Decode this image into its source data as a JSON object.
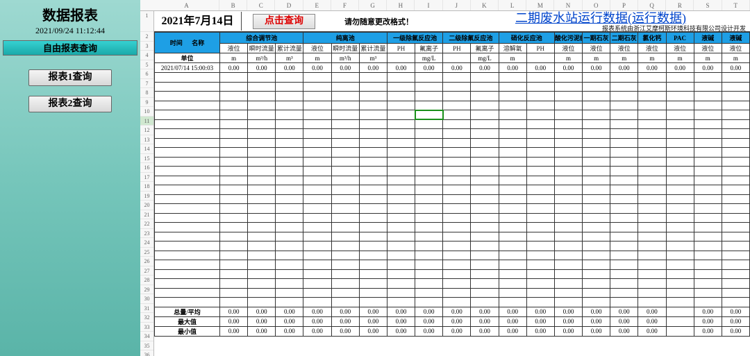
{
  "sidebar": {
    "title": "数据报表",
    "timestamp": "2021/09/24 11:12:44",
    "tab": "自由报表查询",
    "btn1": "报表1查询",
    "btn2": "报表2查询"
  },
  "header": {
    "date": "2021年7月14日",
    "query_btn": "点击查询",
    "warning": "请勿随意更改格式！",
    "title": "二期废水站运行数据(运行数据)",
    "credit": "报表系统由浙江艾摩柯斯环境科技有限公司设计开发"
  },
  "col_letters": [
    "A",
    "B",
    "C",
    "D",
    "E",
    "F",
    "G",
    "H",
    "I",
    "J",
    "K",
    "L",
    "M",
    "N",
    "O",
    "P",
    "Q",
    "R",
    "S",
    "T"
  ],
  "row_nums": [
    "1",
    "2",
    "3",
    "4",
    "5",
    "6",
    "7",
    "8",
    "9",
    "10",
    "11",
    "12",
    "13",
    "14",
    "15",
    "16",
    "17",
    "18",
    "19",
    "20",
    "21",
    "22",
    "23",
    "24",
    "25",
    "26",
    "27",
    "28",
    "29",
    "30",
    "31",
    "32",
    "33",
    "34",
    "35",
    "36"
  ],
  "groups": {
    "time": "时间",
    "name": "名称",
    "g1": "综合调节池",
    "g2": "纯离池",
    "g3": "一级除氟反应池",
    "g4": "二级除氟反应池",
    "g5": "硝化反应池",
    "g6": "酸化污泥缓存",
    "g7": "一期石灰",
    "g8": "二期石灰",
    "g9": "氯化钙",
    "g10": "PAC",
    "g11": "液碱",
    "g12": "液碱"
  },
  "sub": [
    "液位",
    "瞬时流量",
    "累计流量",
    "液位",
    "瞬时流量",
    "累计流量",
    "PH",
    "氟离子",
    "PH",
    "氟离子",
    "溶解氧",
    "PH",
    "液位",
    "液位",
    "液位",
    "液位",
    "液位",
    "液位",
    "液位"
  ],
  "units_label": "单位",
  "units": [
    "m",
    "m³/h",
    "m³",
    "m",
    "m³/h",
    "m³",
    "",
    "mg/L",
    "",
    "mg/L",
    "m",
    "",
    "m",
    "m",
    "m",
    "m",
    "m",
    "m",
    "m"
  ],
  "data_row": {
    "ts": "2021/07/14 15:00:03",
    "v": [
      "0.00",
      "0.00",
      "0.00",
      "0.00",
      "0.00",
      "0.00",
      "0.00",
      "0.00",
      "0.00",
      "0.00",
      "0.00",
      "0.00",
      "0.00",
      "0.00",
      "0.00",
      "0.00",
      "0.00",
      "0.00",
      "0.00"
    ]
  },
  "summary": {
    "r1": "总量/平均",
    "r2": "最大值",
    "r3": "最小值",
    "vals1": [
      "0.00",
      "0.00",
      "0.00",
      "0.00",
      "0.00",
      "0.00",
      "0.00",
      "0.00",
      "0.00",
      "0.00",
      "0.00",
      "0.00",
      "0.00",
      "0.00",
      "0.00",
      "0.00",
      "",
      "0.00",
      "0.00"
    ],
    "vals2": [
      "0.00",
      "0.00",
      "0.00",
      "0.00",
      "0.00",
      "0.00",
      "0.00",
      "0.00",
      "0.00",
      "0.00",
      "0.00",
      "0.00",
      "0.00",
      "0.00",
      "0.00",
      "0.00",
      "",
      "0.00",
      "0.00"
    ],
    "vals3": [
      "0.00",
      "0.00",
      "0.00",
      "0.00",
      "0.00",
      "0.00",
      "0.00",
      "0.00",
      "0.00",
      "0.00",
      "0.00",
      "0.00",
      "0.00",
      "0.00",
      "0.00",
      "0.00",
      "",
      "0.00",
      "0.00"
    ]
  }
}
